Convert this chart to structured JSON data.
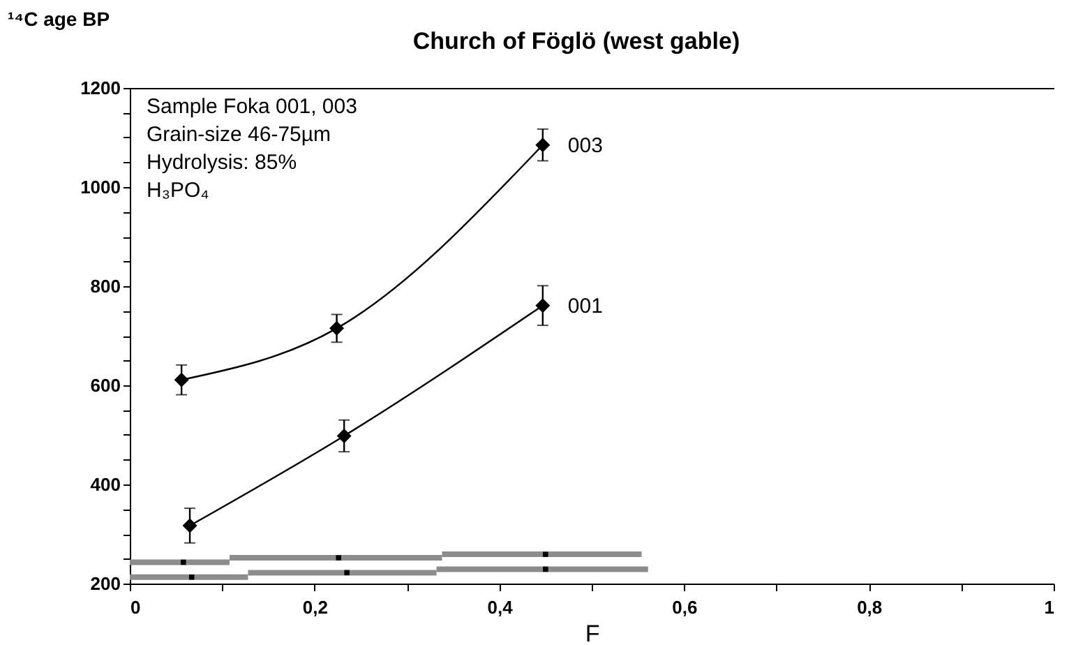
{
  "chart_data": {
    "type": "line",
    "title": "Church of Föglö (west gable)",
    "xlabel": "F",
    "ylabel": "¹⁴C age BP",
    "annotations": [
      "Sample Foka 001, 003",
      "Grain-size 46-75µm",
      "Hydrolysis: 85%",
      "H₃PO₄"
    ],
    "xlim": [
      0,
      1
    ],
    "xticks": [
      0,
      {
        "value": 0.1,
        "label": null
      },
      {
        "value": 0.2,
        "label": "0,2"
      },
      {
        "value": 0.3,
        "label": null
      },
      {
        "value": 0.4,
        "label": "0,4"
      },
      {
        "value": 0.5,
        "label": null
      },
      {
        "value": 0.6,
        "label": "0,6"
      },
      {
        "value": 0.7,
        "label": null
      },
      {
        "value": 0.8,
        "label": "0,8"
      },
      {
        "value": 0.9,
        "label": null
      },
      1
    ],
    "ylim": [
      200,
      1200
    ],
    "yticks": [
      200,
      {
        "value": 250,
        "label": null
      },
      400,
      {
        "value": 450,
        "label": null
      },
      {
        "value": 350,
        "label": null
      },
      {
        "value": 300,
        "label": null
      },
      600,
      {
        "value": 500,
        "label": null
      },
      {
        "value": 550,
        "label": null
      },
      {
        "value": 650,
        "label": null
      },
      {
        "value": 700,
        "label": null
      },
      {
        "value": 750,
        "label": null
      },
      800,
      {
        "value": 850,
        "label": null
      },
      {
        "value": 900,
        "label": null
      },
      {
        "value": 950,
        "label": null
      },
      1000,
      {
        "value": 1050,
        "label": null
      },
      {
        "value": 1100,
        "label": null
      },
      {
        "value": 1150,
        "label": null
      },
      1200
    ],
    "grid": false,
    "marker": "diamond",
    "series": [
      {
        "name": "003",
        "color": "#000000",
        "x": [
          0.056,
          0.224,
          0.447
        ],
        "values": [
          611,
          715,
          1085
        ],
        "errors": [
          30,
          28,
          32
        ]
      },
      {
        "name": "001",
        "color": "#000000",
        "x": [
          0.065,
          0.232,
          0.447
        ],
        "values": [
          317,
          498,
          761
        ],
        "errors": [
          35,
          32,
          40
        ]
      },
      {
        "type": "scatter",
        "marker": "square",
        "color": "#000000",
        "x": [
          0.058,
          0.226,
          0.45
        ],
        "values": [
          243,
          252,
          259
        ],
        "xerrors": [
          [
            0,
            0.108
          ],
          [
            0.108,
            0.338
          ],
          [
            0.338,
            0.554
          ]
        ]
      },
      {
        "type": "scatter",
        "marker": "square",
        "color": "#000000",
        "x": [
          0.067,
          0.235,
          0.45
        ],
        "values": [
          213,
          222,
          229
        ],
        "xerrors": [
          [
            0,
            0.128
          ],
          [
            0.128,
            0.332
          ],
          [
            0.332,
            0.561
          ]
        ]
      }
    ]
  }
}
